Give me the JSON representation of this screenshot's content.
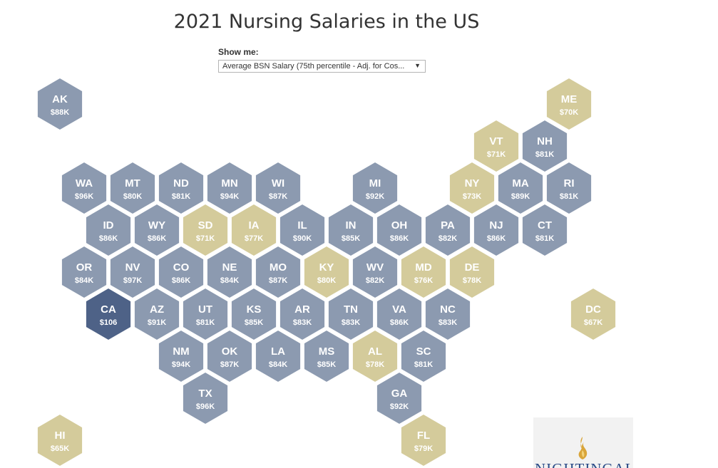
{
  "title": "2021 Nursing Salaries in the US",
  "filter": {
    "label": "Show me:",
    "selected": "Average BSN Salary (75th percentile - Adj. for Cos..."
  },
  "colors": {
    "high": "#4e6287",
    "mid": "#8c9ab0",
    "low": "#d4cb9b"
  },
  "logo": {
    "text": "NIGHTINGALE",
    "icon": "flame-logo-icon"
  },
  "chart_data": {
    "type": "hex-tile-map",
    "states": [
      {
        "abbr": "AK",
        "label": "$88K",
        "value": 88,
        "tier": "mid"
      },
      {
        "abbr": "ME",
        "label": "$70K",
        "value": 70,
        "tier": "low"
      },
      {
        "abbr": "VT",
        "label": "$71K",
        "value": 71,
        "tier": "low"
      },
      {
        "abbr": "NH",
        "label": "$81K",
        "value": 81,
        "tier": "mid"
      },
      {
        "abbr": "WA",
        "label": "$96K",
        "value": 96,
        "tier": "mid"
      },
      {
        "abbr": "MT",
        "label": "$80K",
        "value": 80,
        "tier": "mid"
      },
      {
        "abbr": "ND",
        "label": "$81K",
        "value": 81,
        "tier": "mid"
      },
      {
        "abbr": "MN",
        "label": "$94K",
        "value": 94,
        "tier": "mid"
      },
      {
        "abbr": "WI",
        "label": "$87K",
        "value": 87,
        "tier": "mid"
      },
      {
        "abbr": "MI",
        "label": "$92K",
        "value": 92,
        "tier": "mid"
      },
      {
        "abbr": "NY",
        "label": "$73K",
        "value": 73,
        "tier": "low"
      },
      {
        "abbr": "MA",
        "label": "$89K",
        "value": 89,
        "tier": "mid"
      },
      {
        "abbr": "RI",
        "label": "$81K",
        "value": 81,
        "tier": "mid"
      },
      {
        "abbr": "ID",
        "label": "$86K",
        "value": 86,
        "tier": "mid"
      },
      {
        "abbr": "WY",
        "label": "$86K",
        "value": 86,
        "tier": "mid"
      },
      {
        "abbr": "SD",
        "label": "$71K",
        "value": 71,
        "tier": "low"
      },
      {
        "abbr": "IA",
        "label": "$77K",
        "value": 77,
        "tier": "low"
      },
      {
        "abbr": "IL",
        "label": "$90K",
        "value": 90,
        "tier": "mid"
      },
      {
        "abbr": "IN",
        "label": "$85K",
        "value": 85,
        "tier": "mid"
      },
      {
        "abbr": "OH",
        "label": "$86K",
        "value": 86,
        "tier": "mid"
      },
      {
        "abbr": "PA",
        "label": "$82K",
        "value": 82,
        "tier": "mid"
      },
      {
        "abbr": "NJ",
        "label": "$86K",
        "value": 86,
        "tier": "mid"
      },
      {
        "abbr": "CT",
        "label": "$81K",
        "value": 81,
        "tier": "mid"
      },
      {
        "abbr": "OR",
        "label": "$84K",
        "value": 84,
        "tier": "mid"
      },
      {
        "abbr": "NV",
        "label": "$97K",
        "value": 97,
        "tier": "mid"
      },
      {
        "abbr": "CO",
        "label": "$86K",
        "value": 86,
        "tier": "mid"
      },
      {
        "abbr": "NE",
        "label": "$84K",
        "value": 84,
        "tier": "mid"
      },
      {
        "abbr": "MO",
        "label": "$87K",
        "value": 87,
        "tier": "mid"
      },
      {
        "abbr": "KY",
        "label": "$80K",
        "value": 80,
        "tier": "low"
      },
      {
        "abbr": "WV",
        "label": "$82K",
        "value": 82,
        "tier": "mid"
      },
      {
        "abbr": "MD",
        "label": "$76K",
        "value": 76,
        "tier": "low"
      },
      {
        "abbr": "DE",
        "label": "$78K",
        "value": 78,
        "tier": "low"
      },
      {
        "abbr": "CA",
        "label": "$106",
        "value": 106,
        "tier": "high"
      },
      {
        "abbr": "AZ",
        "label": "$91K",
        "value": 91,
        "tier": "mid"
      },
      {
        "abbr": "UT",
        "label": "$81K",
        "value": 81,
        "tier": "mid"
      },
      {
        "abbr": "KS",
        "label": "$85K",
        "value": 85,
        "tier": "mid"
      },
      {
        "abbr": "AR",
        "label": "$83K",
        "value": 83,
        "tier": "mid"
      },
      {
        "abbr": "TN",
        "label": "$83K",
        "value": 83,
        "tier": "mid"
      },
      {
        "abbr": "VA",
        "label": "$86K",
        "value": 86,
        "tier": "mid"
      },
      {
        "abbr": "NC",
        "label": "$83K",
        "value": 83,
        "tier": "mid"
      },
      {
        "abbr": "DC",
        "label": "$67K",
        "value": 67,
        "tier": "low"
      },
      {
        "abbr": "NM",
        "label": "$94K",
        "value": 94,
        "tier": "mid"
      },
      {
        "abbr": "OK",
        "label": "$87K",
        "value": 87,
        "tier": "mid"
      },
      {
        "abbr": "LA",
        "label": "$84K",
        "value": 84,
        "tier": "mid"
      },
      {
        "abbr": "MS",
        "label": "$85K",
        "value": 85,
        "tier": "mid"
      },
      {
        "abbr": "AL",
        "label": "$78K",
        "value": 78,
        "tier": "low"
      },
      {
        "abbr": "SC",
        "label": "$81K",
        "value": 81,
        "tier": "mid"
      },
      {
        "abbr": "TX",
        "label": "$96K",
        "value": 96,
        "tier": "mid"
      },
      {
        "abbr": "GA",
        "label": "$92K",
        "value": 92,
        "tier": "mid"
      },
      {
        "abbr": "HI",
        "label": "$65K",
        "value": 65,
        "tier": "low"
      },
      {
        "abbr": "FL",
        "label": "$79K",
        "value": 79,
        "tier": "low"
      }
    ]
  }
}
